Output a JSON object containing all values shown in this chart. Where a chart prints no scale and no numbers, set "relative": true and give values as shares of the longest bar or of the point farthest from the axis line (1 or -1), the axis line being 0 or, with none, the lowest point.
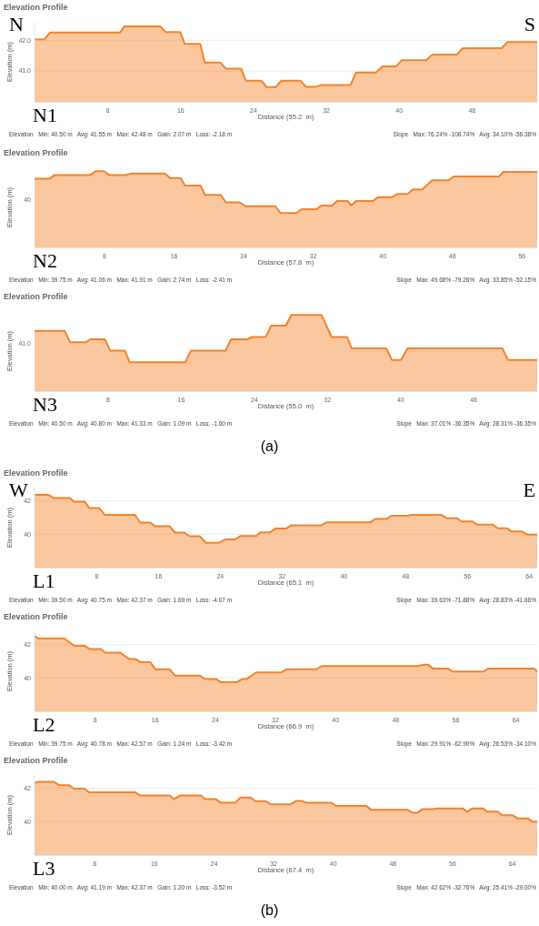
{
  "chart_data": [
    {
      "type": "area",
      "title": "Elevation Profile",
      "xlabel": "Distance (55.2  m)",
      "ylabel": "Elevation (m)",
      "xlim": [
        0,
        55.2
      ],
      "xticks": [
        8,
        16,
        24,
        32,
        40,
        48
      ],
      "ylim": [
        40,
        42.6
      ],
      "yticks": [
        {
          "value": 41,
          "label": "41.0"
        },
        {
          "value": 42,
          "label": "42.0"
        }
      ],
      "grid": "y",
      "x": [
        0,
        1.05,
        1.7,
        9.4,
        9.85,
        13.8,
        14.4,
        16.0,
        16.5,
        18.2,
        18.7,
        20.4,
        21.0,
        22.7,
        23.2,
        24.9,
        25.5,
        26.5,
        27.1,
        29.2,
        29.8,
        30.9,
        31.5,
        34.7,
        35.3,
        37.5,
        38.2,
        39.7,
        40.3,
        43.0,
        43.7,
        46.4,
        47.0,
        51.3,
        51.9,
        55.2
      ],
      "series": [
        {
          "color": "#f5822a",
          "values": [
            42.03,
            42.03,
            42.25,
            42.25,
            42.45,
            42.45,
            42.27,
            42.27,
            41.88,
            41.88,
            41.28,
            41.28,
            41.08,
            41.08,
            40.69,
            40.69,
            40.48,
            40.48,
            40.69,
            40.69,
            40.49,
            40.49,
            40.55,
            40.55,
            40.95,
            40.95,
            41.15,
            41.15,
            41.35,
            41.35,
            41.54,
            41.54,
            41.74,
            41.74,
            41.94,
            41.94
          ]
        }
      ],
      "annotations": [
        "N",
        "S",
        "N1",
        "Elevation   Min: 40.50 m   Avg: 41.55 m   Max: 42.48 m   Gain: 2.07 m   Loss: -2.18 m",
        "Slope   Max: 76.24% -108.74%   Avg: 34.10% -56.38%"
      ]
    },
    {
      "type": "area",
      "title": "Elevation Profile",
      "xlabel": "Distance (57.8  m)",
      "ylabel": "Elevation (m)",
      "xlim": [
        0,
        57.8
      ],
      "xticks": [
        8,
        16,
        24,
        32,
        40,
        48,
        56
      ],
      "relative": true,
      "x": [
        0,
        1.7,
        2.3,
        6.4,
        7.0,
        8.0,
        8.6,
        10.5,
        11.1,
        15.0,
        15.6,
        16.8,
        17.3,
        19.1,
        19.6,
        21.4,
        22.0,
        23.6,
        24.3,
        27.7,
        28.3,
        30.1,
        30.7,
        32.4,
        33.0,
        34.2,
        34.8,
        36.0,
        36.4,
        37.0,
        38.9,
        39.5,
        41.1,
        41.7,
        42.9,
        43.5,
        44.6,
        45.7,
        47.6,
        48.2,
        53.4,
        53.9,
        57.8
      ],
      "series": [
        {
          "color": "#f5822a",
          "values": [
            0.9,
            0.9,
            0.95,
            0.95,
            1.0,
            1.0,
            0.95,
            0.95,
            0.97,
            0.97,
            0.91,
            0.91,
            0.81,
            0.81,
            0.69,
            0.69,
            0.59,
            0.59,
            0.54,
            0.54,
            0.45,
            0.45,
            0.5,
            0.5,
            0.55,
            0.55,
            0.61,
            0.61,
            0.55,
            0.61,
            0.61,
            0.66,
            0.66,
            0.7,
            0.7,
            0.76,
            0.76,
            0.88,
            0.88,
            0.93,
            0.93,
            0.99,
            0.99
          ]
        }
      ],
      "annotations": [
        "40",
        "N2",
        "Elevation   Min: 39.75 m   Avg: 41.06 m   Max: 41.91 m   Gain: 2.74 m   Loss: -2.41 m",
        "Slope   Max: 49.68% -79.26%   Avg: 33.85% -52.15%"
      ]
    },
    {
      "type": "area",
      "title": "Elevation Profile",
      "xlabel": "Distance (55.0  m)",
      "ylabel": "Elevation (m)",
      "xlim": [
        0,
        55.0
      ],
      "xticks": [
        8,
        16,
        24,
        32,
        40,
        48
      ],
      "relative": true,
      "x": [
        0,
        3.3,
        3.9,
        5.6,
        6.1,
        7.7,
        8.3,
        9.9,
        10.4,
        16.5,
        17.1,
        20.9,
        21.5,
        23.3,
        23.8,
        25.3,
        25.9,
        27.5,
        28.1,
        31.4,
        32.5,
        34.2,
        34.7,
        38.5,
        39.1,
        40.1,
        40.8,
        51.2,
        51.8,
        55.0
      ],
      "series": [
        {
          "color": "#f5822a",
          "values": [
            0.79,
            0.79,
            0.64,
            0.64,
            0.68,
            0.68,
            0.53,
            0.53,
            0.38,
            0.38,
            0.53,
            0.53,
            0.68,
            0.68,
            0.71,
            0.71,
            0.86,
            0.86,
            1.0,
            1.0,
            0.71,
            0.71,
            0.56,
            0.56,
            0.41,
            0.41,
            0.56,
            0.56,
            0.41,
            0.41
          ]
        }
      ],
      "annotations": [
        "41.0",
        "N3",
        "Elevation   Min: 40.50 m   Avg: 40.80 m   Max: 41.33 m   Gain: 1.09 m   Loss: -1.60 m",
        "Slope   Max: 37.01% -36.35%   Avg: 28.31% -36.35%",
        "(a)"
      ]
    },
    {
      "type": "area",
      "title": "Elevation Profile",
      "xlabel": "Distance (65.1  m)",
      "ylabel": "Elevation (m)",
      "xlim": [
        0,
        65.1
      ],
      "xticks": [
        8,
        16,
        24,
        32,
        40,
        48,
        56,
        64
      ],
      "ylim": [
        38,
        42.8
      ],
      "yticks": [
        {
          "value": 40,
          "label": "40"
        },
        {
          "value": 42,
          "label": "42"
        }
      ],
      "grid": "y",
      "x": [
        0,
        1.8,
        2.5,
        4.6,
        5.1,
        6.5,
        7.1,
        8.4,
        9.1,
        13.0,
        13.7,
        15.0,
        15.6,
        17.5,
        18.2,
        19.4,
        20.1,
        21.4,
        22.2,
        23.9,
        24.7,
        26.0,
        26.7,
        28.7,
        29.3,
        30.5,
        31.2,
        32.6,
        33.2,
        37.1,
        37.8,
        43.5,
        44.1,
        45.6,
        46.2,
        48.2,
        48.9,
        52.7,
        53.4,
        54.7,
        55.3,
        56.7,
        57.3,
        59.3,
        60.0,
        61.2,
        61.8,
        63.1,
        63.8,
        65.1
      ],
      "series": [
        {
          "color": "#f5822a",
          "values": [
            42.36,
            42.36,
            42.17,
            42.17,
            41.95,
            41.95,
            41.57,
            41.57,
            41.16,
            41.16,
            40.7,
            40.7,
            40.48,
            40.48,
            40.1,
            40.1,
            39.88,
            39.88,
            39.49,
            39.49,
            39.69,
            39.69,
            39.9,
            39.9,
            40.12,
            40.12,
            40.34,
            40.34,
            40.53,
            40.53,
            40.72,
            40.72,
            40.92,
            40.92,
            41.11,
            41.11,
            41.16,
            41.16,
            40.96,
            40.96,
            40.77,
            40.77,
            40.58,
            40.58,
            40.36,
            40.36,
            40.17,
            40.17,
            39.98,
            39.98
          ]
        }
      ],
      "annotations": [
        "W",
        "E",
        "L1",
        "Elevation   Min: 39.50 m   Avg: 40.75 m   Max: 42.37 m   Gain: 1.69 m   Loss: -4.07 m",
        "Slope   Max: 39.63% -71.88%   Avg: 28.83% -41.66%"
      ]
    },
    {
      "type": "area",
      "title": "Elevation Profile",
      "xlabel": "Distance (66.9  m)",
      "ylabel": "Elevation (m)",
      "xlim": [
        0,
        66.9
      ],
      "xticks": [
        8,
        16,
        24,
        32,
        40,
        48,
        56,
        64
      ],
      "ylim": [
        38,
        42.8
      ],
      "yticks": [
        {
          "value": 40,
          "label": "40"
        },
        {
          "value": 42,
          "label": "42"
        }
      ],
      "grid": "y",
      "x": [
        0,
        0.5,
        4.0,
        5.3,
        6.7,
        7.3,
        8.8,
        9.4,
        11.4,
        12.6,
        13.4,
        14.1,
        15.4,
        16.1,
        18.0,
        18.7,
        22.0,
        22.7,
        24.2,
        24.8,
        26.9,
        27.6,
        28.2,
        29.5,
        32.8,
        33.5,
        37.5,
        38.2,
        51.0,
        51.7,
        52.4,
        53.0,
        55.0,
        55.7,
        59.7,
        60.4,
        66.5,
        66.9
      ],
      "series": [
        {
          "color": "#f5822a",
          "values": [
            42.52,
            42.36,
            42.36,
            41.93,
            41.93,
            41.74,
            41.74,
            41.52,
            41.52,
            41.14,
            41.14,
            40.95,
            40.95,
            40.52,
            40.52,
            40.14,
            40.14,
            39.93,
            39.93,
            39.74,
            39.74,
            39.93,
            39.93,
            40.33,
            40.33,
            40.52,
            40.52,
            40.71,
            40.71,
            40.79,
            40.79,
            40.57,
            40.57,
            40.38,
            40.38,
            40.57,
            40.57,
            40.38
          ]
        }
      ],
      "annotations": [
        "L2",
        "Elevation   Min: 39.75 m   Avg: 40.78 m   Max: 42.57 m   Gain: 1.24 m   Loss: -3.42 m",
        "Slope   Max: 29.91% -62.90%   Avg: 26.53% -34.10%"
      ]
    },
    {
      "type": "area",
      "title": "Elevation Profile",
      "xlabel": "Distance (67.4  m)",
      "ylabel": "Elevation (m)",
      "xlim": [
        0,
        67.4
      ],
      "xticks": [
        8,
        16,
        24,
        32,
        40,
        48,
        56,
        64
      ],
      "ylim": [
        38,
        42.8
      ],
      "yticks": [
        {
          "value": 40,
          "label": "40"
        },
        {
          "value": 42,
          "label": "42"
        }
      ],
      "grid": "y",
      "x": [
        0,
        0.6,
        2.6,
        3.3,
        4.6,
        5.3,
        6.7,
        7.3,
        13.5,
        14.2,
        18.1,
        18.7,
        19.5,
        22.3,
        22.9,
        24.3,
        25.0,
        26.9,
        27.6,
        29.0,
        29.6,
        31.0,
        31.7,
        34.3,
        35.1,
        35.8,
        36.5,
        39.8,
        40.5,
        44.5,
        45.1,
        50.0,
        50.7,
        51.3,
        52.0,
        53.4,
        54.1,
        57.4,
        58.0,
        58.7,
        60.1,
        60.7,
        62.1,
        62.7,
        64.1,
        64.8,
        66.2,
        66.8,
        67.4
      ],
      "series": [
        {
          "color": "#f5822a",
          "values": [
            42.34,
            42.39,
            42.39,
            42.19,
            42.19,
            41.98,
            41.98,
            41.76,
            41.76,
            41.57,
            41.57,
            41.35,
            41.57,
            41.57,
            41.35,
            41.35,
            41.13,
            41.13,
            41.45,
            41.45,
            41.23,
            41.23,
            41.04,
            41.04,
            41.25,
            41.25,
            41.13,
            41.13,
            40.94,
            40.94,
            40.72,
            40.72,
            40.53,
            40.53,
            40.75,
            40.75,
            40.8,
            40.8,
            40.6,
            40.8,
            40.8,
            40.6,
            40.6,
            40.39,
            40.39,
            40.19,
            40.19,
            40.0,
            40.0
          ]
        }
      ],
      "annotations": [
        "L3",
        "Elevation   Min: 40.00 m   Avg: 41.19 m   Max: 42.37 m   Gain: 1.20 m   Loss: -3.52 m",
        "Slope   Max: 42.62% -32.76%   Avg: 25.41% -29.00%",
        "(b)"
      ]
    }
  ]
}
